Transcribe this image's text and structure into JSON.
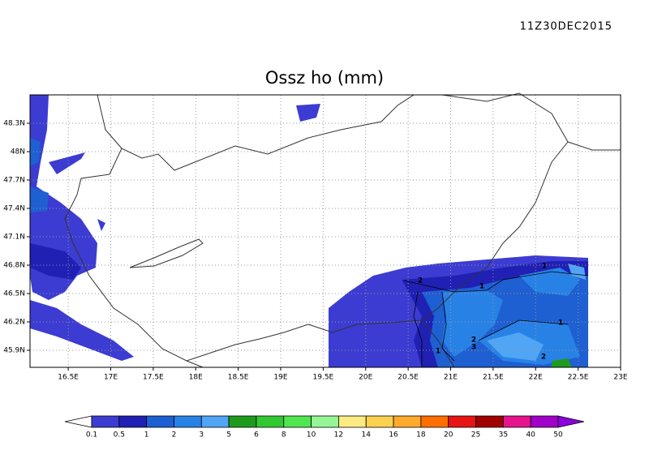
{
  "header": {
    "timestamp": "11Z30DEC2015",
    "title": "Ossz ho (mm)"
  },
  "map": {
    "xlim": [
      16.05,
      23.0
    ],
    "ylim": [
      45.72,
      48.6
    ],
    "xticks": [
      {
        "value": 16.5,
        "label": "16.5E"
      },
      {
        "value": 17,
        "label": "17E"
      },
      {
        "value": 17.5,
        "label": "17.5E"
      },
      {
        "value": 18,
        "label": "18E"
      },
      {
        "value": 18.5,
        "label": "18.5E"
      },
      {
        "value": 19,
        "label": "19E"
      },
      {
        "value": 19.5,
        "label": "19.5E"
      },
      {
        "value": 20,
        "label": "20E"
      },
      {
        "value": 20.5,
        "label": "20.5E"
      },
      {
        "value": 21,
        "label": "21E"
      },
      {
        "value": 21.5,
        "label": "21.5E"
      },
      {
        "value": 22,
        "label": "22E"
      },
      {
        "value": 22.5,
        "label": "22.5E"
      },
      {
        "value": 23,
        "label": "23E"
      }
    ],
    "yticks": [
      {
        "value": 45.9,
        "label": "45.9N"
      },
      {
        "value": 46.2,
        "label": "46.2N"
      },
      {
        "value": 46.5,
        "label": "46.5N"
      },
      {
        "value": 46.8,
        "label": "46.8N"
      },
      {
        "value": 47.1,
        "label": "47.1N"
      },
      {
        "value": 47.4,
        "label": "47.4N"
      },
      {
        "value": 47.7,
        "label": "47.7N"
      },
      {
        "value": 48,
        "label": "48N"
      },
      {
        "value": 48.3,
        "label": "48.3N"
      }
    ],
    "grid": true,
    "contour_labels": [
      "2",
      "1",
      "1",
      "1",
      "2",
      "3",
      "1",
      "2"
    ]
  },
  "colorbar": {
    "levels": [
      0.1,
      0.5,
      1,
      2,
      3,
      5,
      6,
      8,
      10,
      12,
      14,
      16,
      18,
      20,
      25,
      35,
      40,
      50
    ],
    "colors": [
      "#ffffff",
      "#3c3cd2",
      "#2020b4",
      "#1e5fd2",
      "#2882e6",
      "#50a5f5",
      "#1e9b1e",
      "#32c832",
      "#50e650",
      "#96f596",
      "#faeb82",
      "#fad250",
      "#ffaa2d",
      "#ff6e00",
      "#e61414",
      "#a00000",
      "#e6148c",
      "#a000c8",
      "#8c00dc"
    ]
  }
}
